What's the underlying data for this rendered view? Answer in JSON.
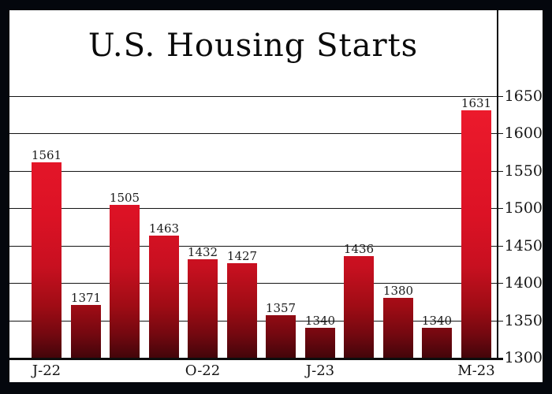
{
  "chart_data": {
    "type": "bar",
    "title": "U.S. Housing Starts",
    "categories": [
      "J-22",
      "",
      "",
      "",
      "O-22",
      "",
      "",
      "J-23",
      "",
      "",
      "",
      "M-23"
    ],
    "values": [
      1561,
      1371,
      1505,
      1463,
      1432,
      1427,
      1357,
      1340,
      1436,
      1380,
      1340,
      1631
    ],
    "value_labels_shown": true,
    "xlabel": "",
    "ylabel": "",
    "ylim": [
      1300,
      1650
    ],
    "yticks": [
      1300,
      1350,
      1400,
      1450,
      1500,
      1550,
      1600,
      1650
    ],
    "y_axis_side": "right",
    "grid": true,
    "legend": false,
    "colors": {
      "bar_gradient_top": "#ee1b2d",
      "bar_gradient_mid": "#c81020",
      "bar_gradient_bottom": "#43050a",
      "frame": "#04070d",
      "plot_background": "#ffffff",
      "gridline": "#141414",
      "text": "#141414"
    }
  }
}
